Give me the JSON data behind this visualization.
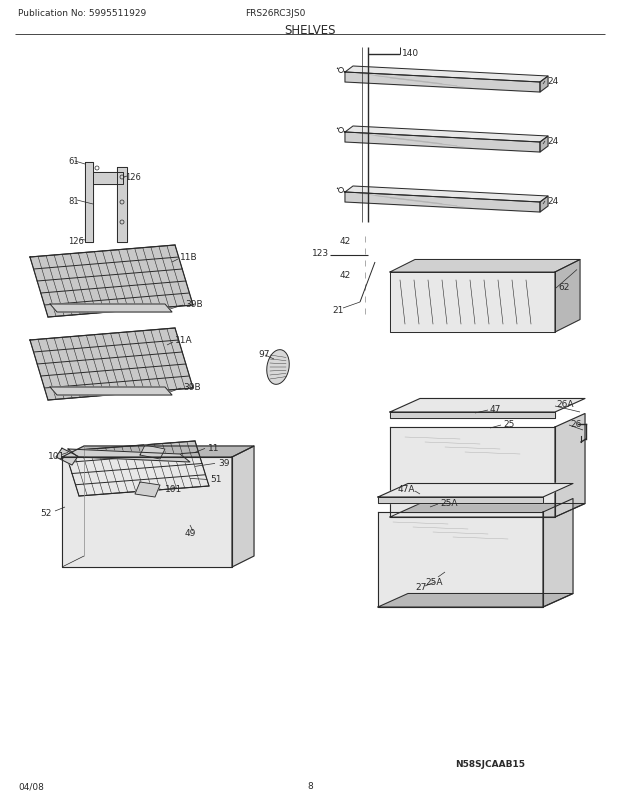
{
  "title": "SHELVES",
  "pub_no": "Publication No: 5995511929",
  "model": "FRS26RC3JS0",
  "date": "04/08",
  "page": "8",
  "diagram_id": "N58SJCAAB15",
  "bg_color": "#ffffff",
  "line_color": "#2a2a2a",
  "fill_light": "#e8e8e8",
  "fill_mid": "#d0d0d0",
  "fill_dark": "#b8b8b8"
}
